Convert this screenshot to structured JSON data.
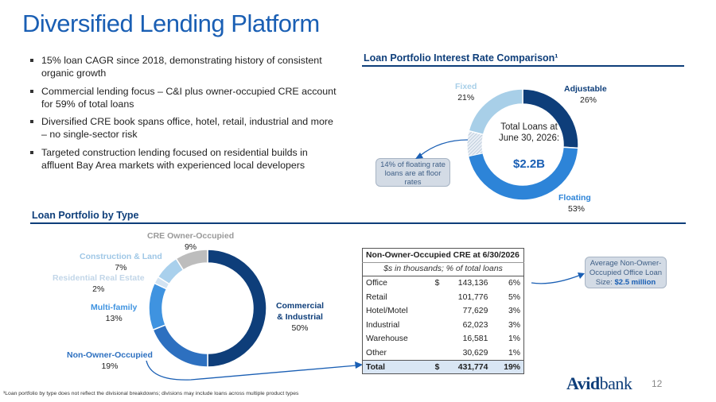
{
  "title": "Diversified Lending Platform",
  "bullets": [
    "15% loan CAGR since 2018, demonstrating history of consistent organic growth",
    "Commercial lending focus – C&I plus owner-occupied CRE account for 59% of total loans",
    "Diversified CRE book spans office, hotel, retail, industrial and more – no single-sector risk",
    "Targeted construction lending focused on residential builds in affluent Bay Area markets with experienced local developers"
  ],
  "rate_section": {
    "heading": "Loan Portfolio Interest Rate Comparison¹",
    "center_label": "Total Loans at June 30, 2026:",
    "center_value": "$2.2B",
    "callout": "14% of floating rate loans are at floor rates"
  },
  "type_section": {
    "heading": "Loan Portfolio by Type"
  },
  "chart_data": [
    {
      "type": "pie",
      "title": "Loan Portfolio Interest Rate Comparison¹",
      "slices": [
        {
          "name": "Adjustable",
          "value": 26,
          "label": "26%",
          "color": "#0e3e7a"
        },
        {
          "name": "Floating",
          "value": 53,
          "label": "53%",
          "color": "#2d84d8"
        },
        {
          "name": "Fixed",
          "value": 21,
          "label": "21%",
          "color": "#a8cfe8"
        }
      ],
      "hatched_portion_of_floating": 7.4
    },
    {
      "type": "pie",
      "title": "Loan Portfolio by Type",
      "slices": [
        {
          "name": "Commercial & Industrial",
          "value": 50,
          "label": "50%",
          "color": "#0e3e7a"
        },
        {
          "name": "Non-Owner-Occupied",
          "value": 19,
          "label": "19%",
          "color": "#2d70c0"
        },
        {
          "name": "Multi-family",
          "value": 13,
          "label": "13%",
          "color": "#3f93e0"
        },
        {
          "name": "Residential Real Estate",
          "value": 2,
          "label": "2%",
          "color": "#d2e3f2"
        },
        {
          "name": "Construction & Land",
          "value": 7,
          "label": "7%",
          "color": "#a9d0ec"
        },
        {
          "name": "CRE Owner-Occupied",
          "value": 9,
          "label": "9%",
          "color": "#bdbdbd"
        }
      ]
    }
  ],
  "table": {
    "title": "Non-Owner-Occupied CRE at 6/30/2026",
    "subtitle": "$s in thousands; % of total loans",
    "rows": [
      {
        "name": "Office",
        "cur": "$",
        "amount": "143,136",
        "pct": "6%"
      },
      {
        "name": "Retail",
        "cur": "",
        "amount": "101,776",
        "pct": "5%"
      },
      {
        "name": "Hotel/Motel",
        "cur": "",
        "amount": "77,629",
        "pct": "3%"
      },
      {
        "name": "Industrial",
        "cur": "",
        "amount": "62,023",
        "pct": "3%"
      },
      {
        "name": "Warehouse",
        "cur": "",
        "amount": "16,581",
        "pct": "1%"
      },
      {
        "name": "Other",
        "cur": "",
        "amount": "30,629",
        "pct": "1%"
      }
    ],
    "total": {
      "name": "Total",
      "cur": "$",
      "amount": "431,774",
      "pct": "19%"
    }
  },
  "office_callout": {
    "text": "Average Non-Owner-Occupied Office Loan Size:",
    "value": "$2.5 million"
  },
  "footnote": "¹Loan portfolio by type does not reflect the divisional breakdowns; divisions may include loans across multiple product types",
  "brand": {
    "bold": "Avid",
    "light": "bank"
  },
  "page_number": "12"
}
